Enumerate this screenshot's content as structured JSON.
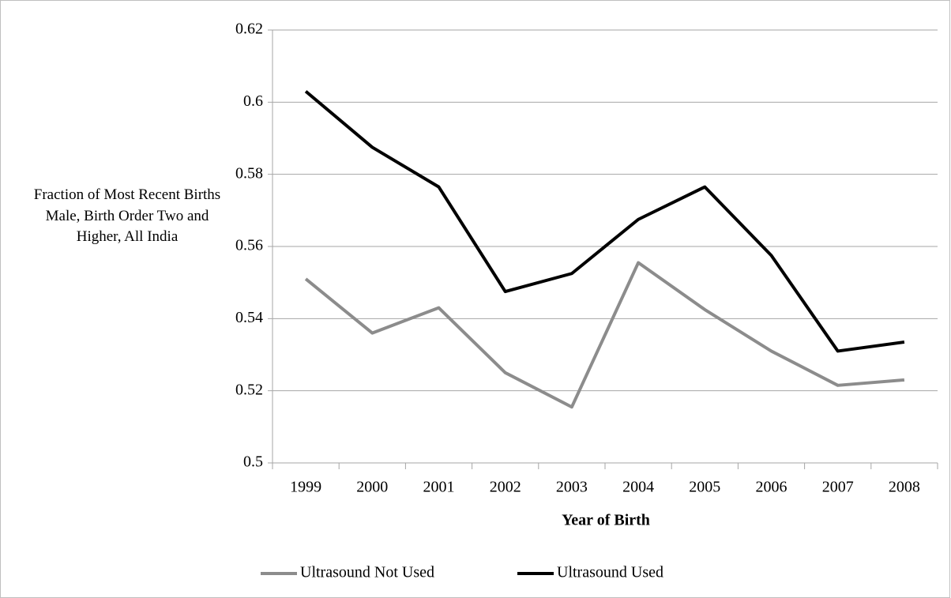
{
  "chart_data": {
    "type": "line",
    "y_label": "Fraction of Most Recent Births Male, Birth Order Two and Higher, All India",
    "x_label": "Year of Birth",
    "categories": [
      "1999",
      "2000",
      "2001",
      "2002",
      "2003",
      "2004",
      "2005",
      "2006",
      "2007",
      "2008"
    ],
    "series": [
      {
        "name": "Ultrasound Not Used",
        "color": "#8c8c8c",
        "values": [
          0.551,
          0.536,
          0.543,
          0.525,
          0.5155,
          0.5555,
          0.5425,
          0.531,
          0.5215,
          0.523
        ]
      },
      {
        "name": "Ultrasound Used",
        "color": "#000000",
        "values": [
          0.603,
          0.5875,
          0.5765,
          0.5475,
          0.5525,
          0.5675,
          0.5765,
          0.5575,
          0.531,
          0.5335
        ]
      }
    ],
    "ylim": [
      0.5,
      0.62
    ],
    "yticks": [
      0.5,
      0.52,
      0.54,
      0.56,
      0.58,
      0.6,
      0.62
    ],
    "grid": true,
    "legend": "bottom"
  }
}
